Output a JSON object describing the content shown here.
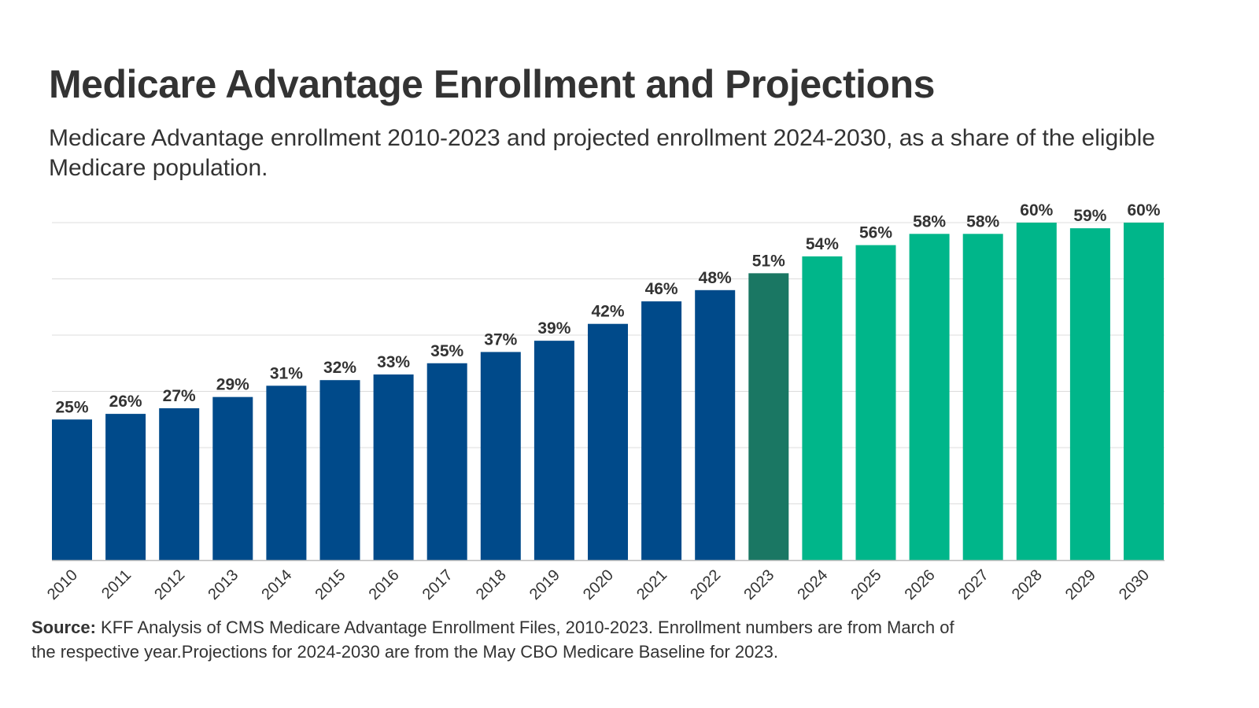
{
  "chart_data": {
    "type": "bar",
    "title": "Medicare Advantage Enrollment and Projections",
    "subtitle": "Medicare Advantage enrollment 2010-2023 and projected enrollment 2024-2030, as a share of the eligible Medicare population.",
    "categories": [
      "2010",
      "2011",
      "2012",
      "2013",
      "2014",
      "2015",
      "2016",
      "2017",
      "2018",
      "2019",
      "2020",
      "2021",
      "2022",
      "2023",
      "2024",
      "2025",
      "2026",
      "2027",
      "2028",
      "2029",
      "2030"
    ],
    "values": [
      25,
      26,
      27,
      29,
      31,
      32,
      33,
      35,
      37,
      39,
      42,
      46,
      48,
      51,
      54,
      56,
      58,
      58,
      60,
      59,
      60
    ],
    "data_labels": [
      "25%",
      "26%",
      "27%",
      "29%",
      "31%",
      "32%",
      "33%",
      "35%",
      "37%",
      "39%",
      "42%",
      "46%",
      "48%",
      "51%",
      "54%",
      "56%",
      "58%",
      "58%",
      "60%",
      "59%",
      "60%"
    ],
    "ylim": [
      0,
      60
    ],
    "grid": true,
    "gridline_step": 10,
    "colors": {
      "historical": "#004a8a",
      "current": "#1a7763",
      "projected": "#00b68a"
    },
    "xlabel": "",
    "ylabel": ""
  },
  "source": {
    "label": "Source:",
    "text": " KFF Analysis of CMS Medicare Advantage Enrollment Files, 2010-2023. Enrollment numbers are from March of the respective year.Projections for 2024-2030 are from the May CBO Medicare Baseline for 2023."
  }
}
